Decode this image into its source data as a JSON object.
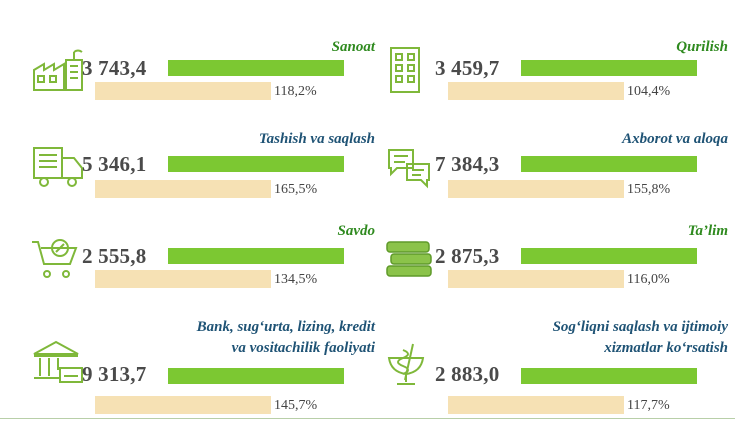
{
  "items": [
    {
      "title": "Sanoat",
      "value": "3 743,4",
      "growth": "118,2%",
      "title_color": "green",
      "icon": "factory-icon"
    },
    {
      "title": "Qurilish",
      "value": "3 459,7",
      "growth": "104,4%",
      "title_color": "green",
      "icon": "building-icon"
    },
    {
      "title": "Tashish va saqlash",
      "value": "5 346,1",
      "growth": "165,5%",
      "title_color": "blue",
      "icon": "truck-icon"
    },
    {
      "title": "Axborot va aloqa",
      "value": "7 384,3",
      "growth": "155,8%",
      "title_color": "blue",
      "icon": "chat-icon"
    },
    {
      "title": "Savdo",
      "value": "2 555,8",
      "growth": "134,5%",
      "title_color": "green",
      "icon": "cart-icon"
    },
    {
      "title": "Ta’lim",
      "value": "2 875,3",
      "growth": "116,0%",
      "title_color": "green",
      "icon": "books-icon"
    },
    {
      "title_line1": "Bank, sug‘urta, lizing, kredit",
      "title_line2": "va vositachilik faoliyati",
      "value": "9 313,7",
      "growth": "145,7%",
      "title_color": "blue",
      "icon": "bank-icon"
    },
    {
      "title_line1": "Sog‘liqni saqlash va ijtimoiy",
      "title_line2": "xizmatlar ko‘rsatish",
      "value": "2 883,0",
      "growth": "117,7%",
      "title_color": "blue",
      "icon": "medical-icon"
    }
  ],
  "colors": {
    "bar_green": "#7cc832",
    "bar_beige": "#f6e1b4",
    "title_green": "#2f8a1f",
    "title_blue": "#1f5375"
  }
}
